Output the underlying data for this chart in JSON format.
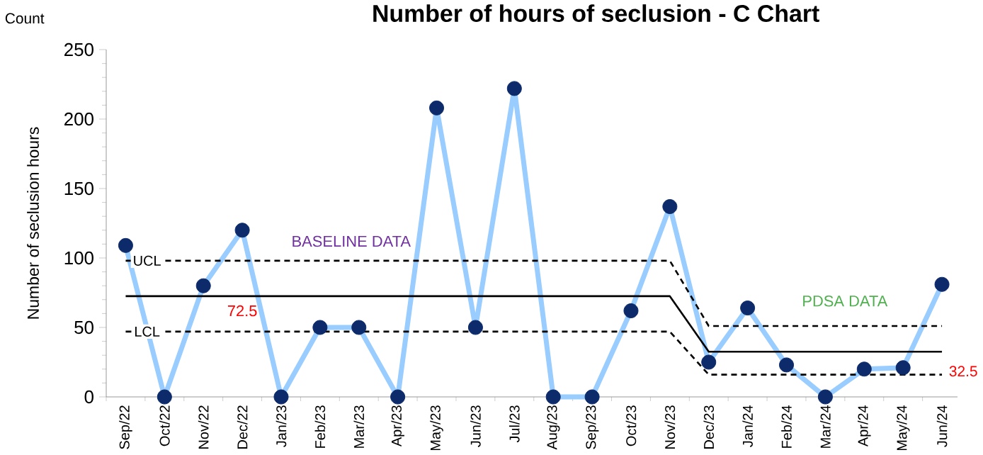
{
  "chart_data": {
    "type": "line",
    "title": "Number of hours of seclusion - C Chart",
    "ylabel": "Number of seclusion hours",
    "categories": [
      "Sep/22",
      "Oct/22",
      "Nov/22",
      "Dec/22",
      "Jan/23",
      "Feb/23",
      "Mar/23",
      "Apr/23",
      "May/23",
      "Jun/23",
      "Jul/23",
      "Aug/23",
      "Sep/23",
      "Oct/23",
      "Nov/23",
      "Dec/23",
      "Jan/24",
      "Feb/24",
      "Mar/24",
      "Apr/24",
      "May/24",
      "Jun/24"
    ],
    "series": [
      {
        "color": "#99ccff",
        "marker": "circle",
        "line_style": "solid",
        "values": [
          109,
          0,
          80,
          120,
          0,
          50,
          50,
          0,
          208,
          50,
          222,
          0,
          0,
          62,
          137,
          25,
          64,
          23,
          0,
          20,
          21,
          81
        ]
      },
      {
        "color": "#000000",
        "marker": "none",
        "line_style": "solid",
        "values": [
          72.5,
          72.5,
          72.5,
          72.5,
          72.5,
          72.5,
          72.5,
          72.5,
          72.5,
          72.5,
          72.5,
          72.5,
          72.5,
          72.5,
          72.5,
          32.5,
          32.5,
          32.5,
          32.5,
          32.5,
          32.5,
          32.5
        ]
      },
      {
        "name": "UCL",
        "color": "#000000",
        "marker": "none",
        "line_style": "dashed",
        "values": [
          98,
          98,
          98,
          98,
          98,
          98,
          98,
          98,
          98,
          98,
          98,
          98,
          98,
          98,
          98,
          51,
          51,
          51,
          51,
          51,
          51,
          51
        ]
      },
      {
        "name": "LCL",
        "color": "#000000",
        "marker": "none",
        "line_style": "dashed",
        "values": [
          47,
          47,
          47,
          47,
          47,
          47,
          47,
          47,
          47,
          47,
          47,
          47,
          47,
          47,
          47,
          16,
          16,
          16,
          16,
          16,
          16,
          16
        ]
      }
    ],
    "ylim": [
      0,
      250
    ],
    "yticks": [
      0,
      50,
      100,
      150,
      200,
      250
    ],
    "grid": false,
    "annotations": [
      "Count",
      "BASELINE DATA",
      "PDSA DATA",
      {
        "text": "72.5",
        "x": "Dec/22",
        "y": 72.5
      },
      {
        "text": "32.5",
        "x": "Jun/24",
        "y": 32.5
      }
    ]
  }
}
